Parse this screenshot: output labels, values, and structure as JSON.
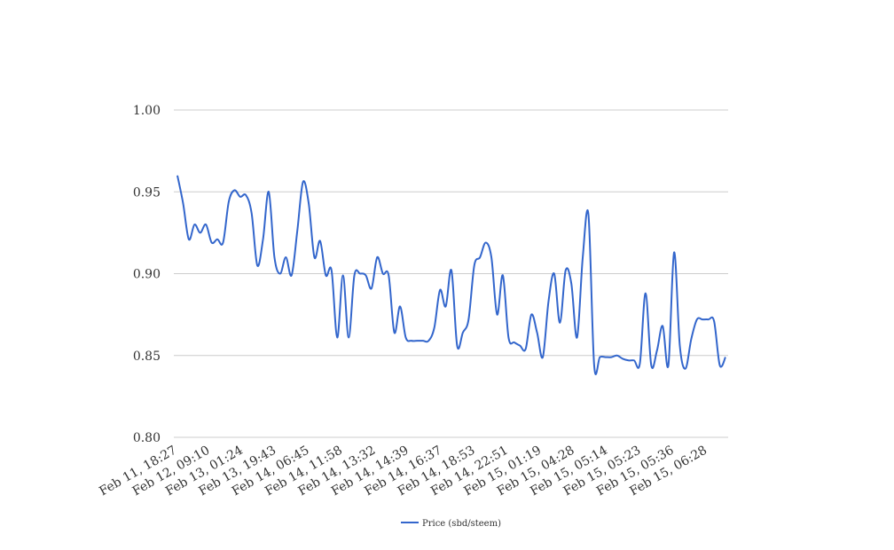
{
  "chart_data": {
    "type": "line",
    "title": "",
    "xlabel": "",
    "ylabel": "",
    "ylim": [
      0.8,
      1.0
    ],
    "yticks": [
      "0.80",
      "0.85",
      "0.90",
      "0.95",
      "1.00"
    ],
    "ytick_values": [
      0.8,
      0.85,
      0.9,
      0.95,
      1.0
    ],
    "grid": true,
    "legend_position": "bottom-center",
    "x_tick_labels": [
      "Feb 11, 18:27",
      "Feb 12, 09:10",
      "Feb 13, 01:24",
      "Feb 13, 19:43",
      "Feb 14, 06:45",
      "Feb 14, 11:58",
      "Feb 14, 13:32",
      "Feb 14, 14:39",
      "Feb 14, 16:37",
      "Feb 14, 18:53",
      "Feb 14, 22:51",
      "Feb 15, 01:19",
      "Feb 15, 04:28",
      "Feb 15, 05:14",
      "Feb 15, 05:23",
      "Feb 15, 05:36",
      "Feb 15, 06:28"
    ],
    "series": [
      {
        "name": "Price (sbd/steem)",
        "color": "#3366cc",
        "values": [
          0.96,
          0.943,
          0.921,
          0.93,
          0.925,
          0.93,
          0.919,
          0.921,
          0.919,
          0.944,
          0.951,
          0.947,
          0.948,
          0.937,
          0.905,
          0.921,
          0.95,
          0.91,
          0.9,
          0.91,
          0.899,
          0.926,
          0.956,
          0.943,
          0.91,
          0.92,
          0.899,
          0.902,
          0.861,
          0.899,
          0.861,
          0.899,
          0.9,
          0.899,
          0.891,
          0.91,
          0.9,
          0.899,
          0.864,
          0.88,
          0.861,
          0.859,
          0.859,
          0.859,
          0.859,
          0.867,
          0.89,
          0.88,
          0.902,
          0.856,
          0.864,
          0.872,
          0.905,
          0.91,
          0.919,
          0.91,
          0.875,
          0.899,
          0.861,
          0.858,
          0.856,
          0.854,
          0.875,
          0.864,
          0.849,
          0.883,
          0.9,
          0.87,
          0.902,
          0.894,
          0.861,
          0.91,
          0.936,
          0.844,
          0.849,
          0.849,
          0.849,
          0.85,
          0.848,
          0.847,
          0.847,
          0.845,
          0.888,
          0.844,
          0.853,
          0.868,
          0.844,
          0.913,
          0.856,
          0.842,
          0.86,
          0.872,
          0.872,
          0.872,
          0.871,
          0.844,
          0.849
        ]
      }
    ]
  }
}
